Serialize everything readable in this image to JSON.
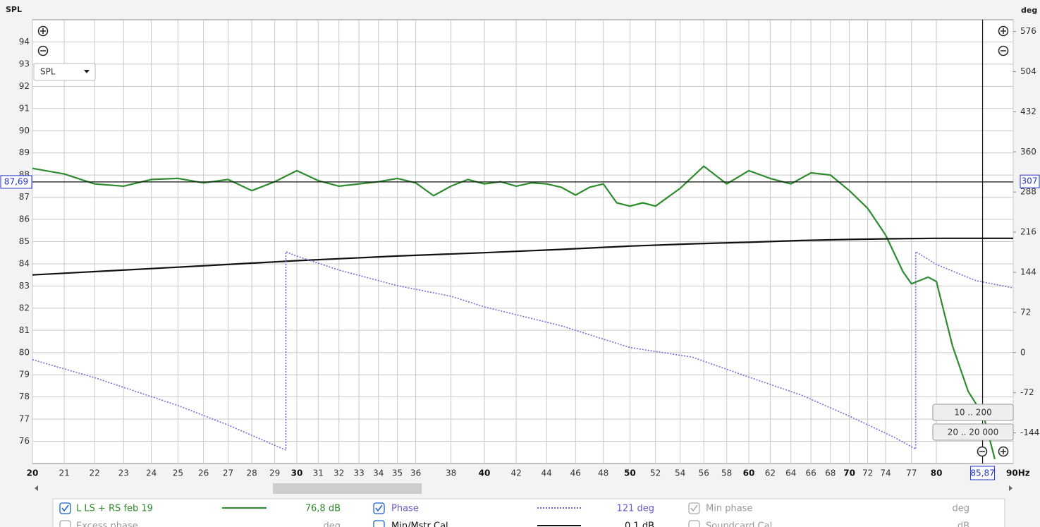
{
  "chart_data": {
    "type": "line",
    "y_axis_title": "SPL",
    "y2_axis_title": "deg",
    "xscale": "log",
    "grid": true,
    "xlim": [
      20,
      90
    ],
    "xticks": [
      20,
      21,
      22,
      23,
      24,
      25,
      26,
      27,
      28,
      29,
      30,
      31,
      32,
      33,
      34,
      35,
      36,
      38,
      40,
      42,
      44,
      46,
      48,
      50,
      52,
      54,
      56,
      58,
      60,
      62,
      64,
      66,
      68,
      70,
      72,
      74,
      77,
      80,
      {
        "value": 90,
        "label": "90Hz"
      }
    ],
    "ylim": [
      75,
      95
    ],
    "yticks": [
      76,
      77,
      78,
      79,
      80,
      81,
      82,
      83,
      84,
      85,
      86,
      87,
      88,
      89,
      90,
      91,
      92,
      93,
      94
    ],
    "y2lim": [
      -199,
      597
    ],
    "y2ticks": [
      576,
      504,
      432,
      360,
      288,
      216,
      144,
      72,
      0,
      -72,
      -144
    ],
    "series": [
      {
        "name": "L LS + RS feb 19",
        "color": "#2e8b2e",
        "style": "solid",
        "x": [
          20,
          21,
          22,
          23,
          24,
          25,
          26,
          27,
          28,
          29,
          30,
          31,
          32,
          33,
          34,
          35,
          36,
          37,
          38,
          39,
          40,
          41,
          42,
          43,
          44,
          45,
          46,
          47,
          48,
          49,
          50,
          51,
          52,
          54,
          56,
          58,
          60,
          62,
          64,
          66,
          68,
          70,
          72,
          74,
          76,
          77,
          78,
          79,
          80,
          82,
          84,
          86,
          87.5
        ],
        "values": [
          88.3,
          88.05,
          87.6,
          87.5,
          87.8,
          87.85,
          87.65,
          87.8,
          87.3,
          87.7,
          88.2,
          87.75,
          87.5,
          87.6,
          87.7,
          87.85,
          87.65,
          87.07,
          87.5,
          87.8,
          87.6,
          87.7,
          87.5,
          87.65,
          87.6,
          87.45,
          87.1,
          87.45,
          87.6,
          86.75,
          86.6,
          86.75,
          86.6,
          87.4,
          88.4,
          87.6,
          88.2,
          87.85,
          87.6,
          88.1,
          88.0,
          87.3,
          86.5,
          85.3,
          83.65,
          83.1,
          83.25,
          83.4,
          83.2,
          80.3,
          78.25,
          77.15,
          75.2
        ]
      },
      {
        "name": "Min/Mstr Cal",
        "color": "#111111",
        "style": "solid",
        "x": [
          20,
          25,
          30,
          35,
          40,
          45,
          50,
          55,
          60,
          65,
          70,
          75,
          80,
          85,
          90
        ],
        "values": [
          83.5,
          83.85,
          84.14,
          84.35,
          84.5,
          84.65,
          84.8,
          84.9,
          84.97,
          85.05,
          85.1,
          85.13,
          85.15,
          85.15,
          85.15
        ]
      },
      {
        "name": "Phase",
        "color": "#7b68d8",
        "style": "dotted",
        "axis": "y2",
        "x": [
          20,
          22,
          25,
          27,
          29.5,
          29.5,
          30,
          32,
          35,
          38,
          40,
          45,
          50,
          55,
          60,
          65,
          70,
          75,
          77.5,
          77.5,
          80,
          85,
          90
        ],
        "values": [
          -12.7,
          -45,
          -95,
          -130,
          -175,
          181,
          173,
          148,
          120,
          101,
          82,
          48,
          9,
          -8,
          -44,
          -76,
          -114,
          -152,
          -173,
          181,
          158,
          129,
          116
        ]
      }
    ],
    "cursor": {
      "x": 85.87,
      "x_label": "85,87",
      "y": 87.69,
      "y_label": "87,69",
      "y2": 307
    }
  },
  "ui": {
    "view_dropdown": "SPL",
    "range_buttons": [
      "10 .. 200",
      "20 .. 20 000"
    ],
    "legend_panel": {
      "readouts": [
        "76,8 dB",
        "0,1 dB",
        "121 deg"
      ],
      "extra_entries": [
        {
          "name": "Min phase",
          "unit": "deg"
        },
        {
          "name": "Excess phase",
          "unit": "deg"
        },
        {
          "name": "Soundcard Cal",
          "unit": "dB"
        }
      ]
    }
  }
}
